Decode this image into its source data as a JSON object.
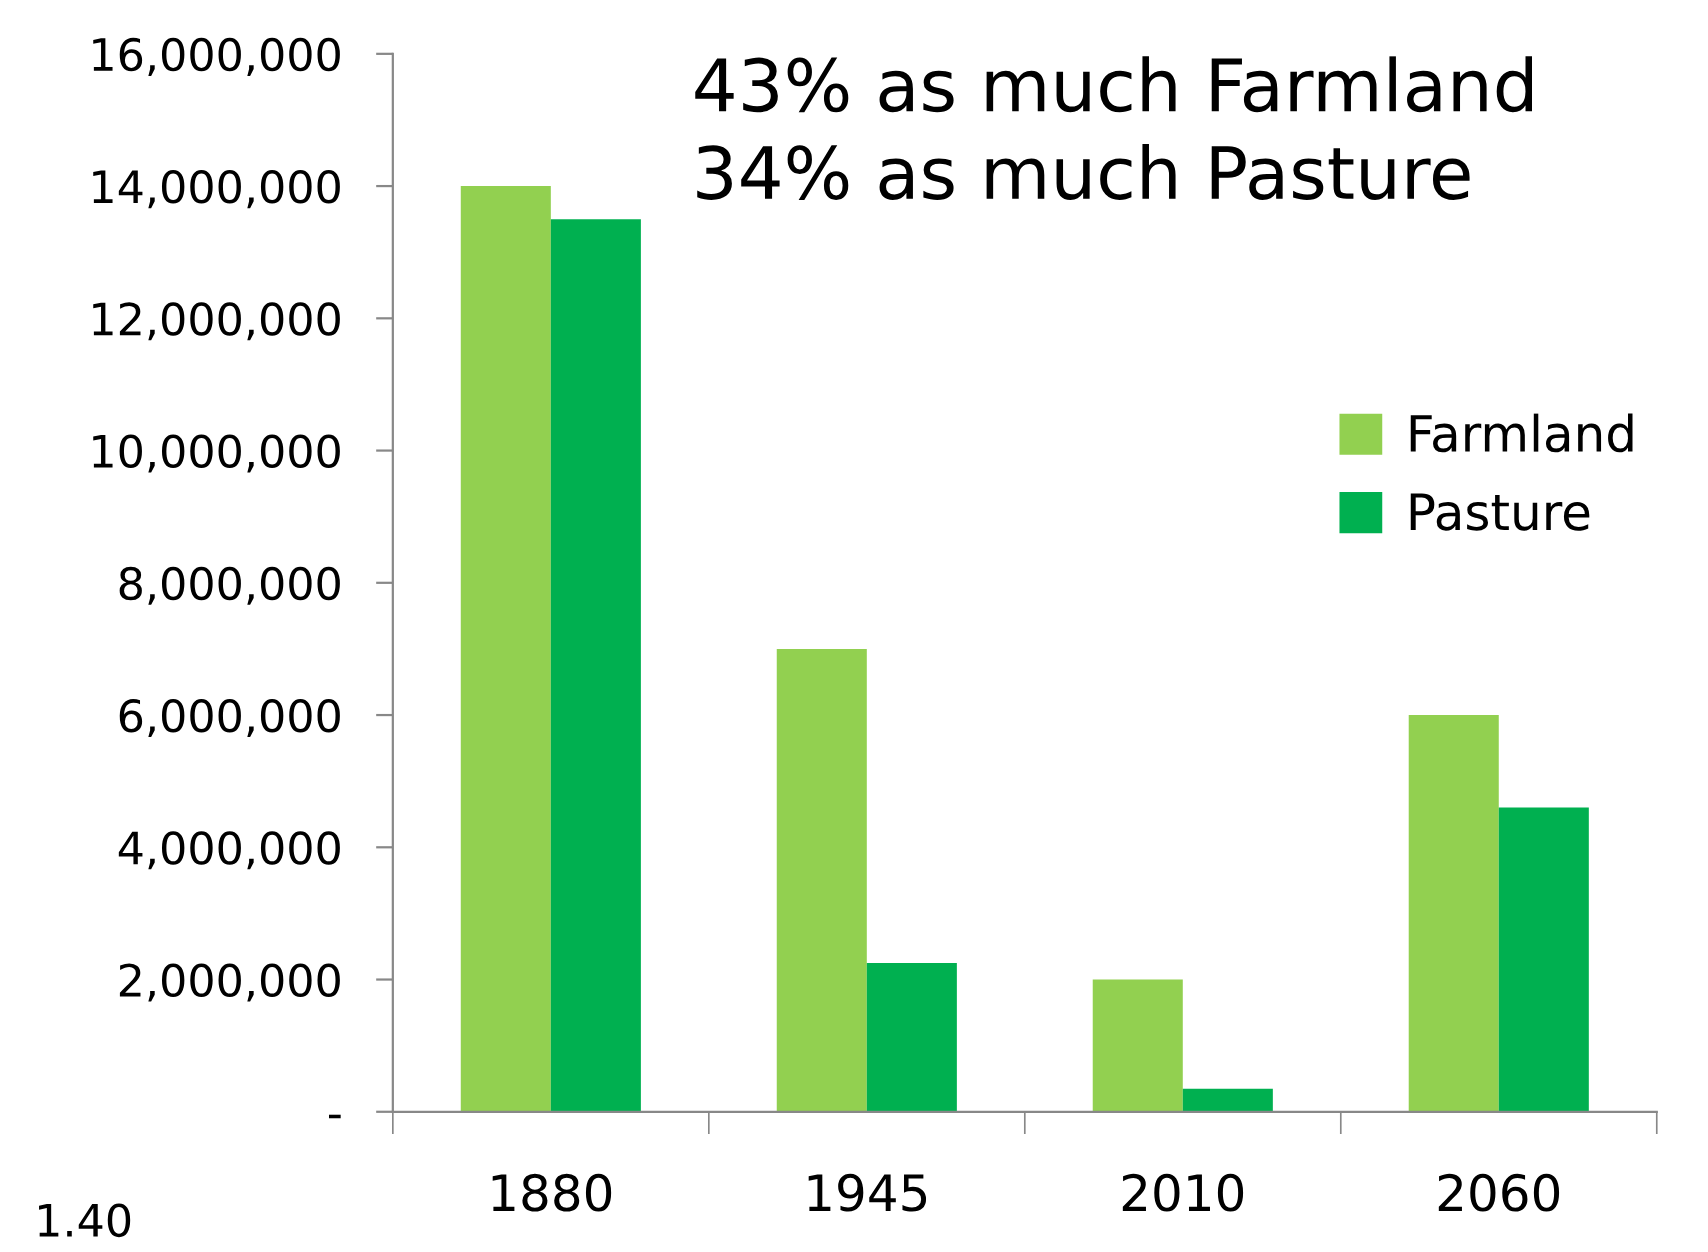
{
  "chart_data": {
    "type": "bar",
    "categories": [
      "1880",
      "1945",
      "2010",
      "2060"
    ],
    "series": [
      {
        "name": "Farmland",
        "color": "#92d050",
        "values": [
          14000000,
          7000000,
          2000000,
          6000000
        ]
      },
      {
        "name": "Pasture",
        "color": "#00b050",
        "values": [
          13500000,
          2250000,
          350000,
          4600000
        ]
      }
    ],
    "ylim": [
      0,
      16000000
    ],
    "yticks": [
      {
        "value": 0,
        "label": "-"
      },
      {
        "value": 2000000,
        "label": "2,000,000"
      },
      {
        "value": 4000000,
        "label": "4,000,000"
      },
      {
        "value": 6000000,
        "label": "6,000,000"
      },
      {
        "value": 8000000,
        "label": "8,000,000"
      },
      {
        "value": 10000000,
        "label": "10,000,000"
      },
      {
        "value": 12000000,
        "label": "12,000,000"
      },
      {
        "value": 14000000,
        "label": "14,000,000"
      },
      {
        "value": 16000000,
        "label": "16,000,000"
      }
    ],
    "annotations": [
      "43% as much Farmland",
      "34% as much Pasture",
      "1.40"
    ],
    "legend": "right",
    "grid": false
  }
}
